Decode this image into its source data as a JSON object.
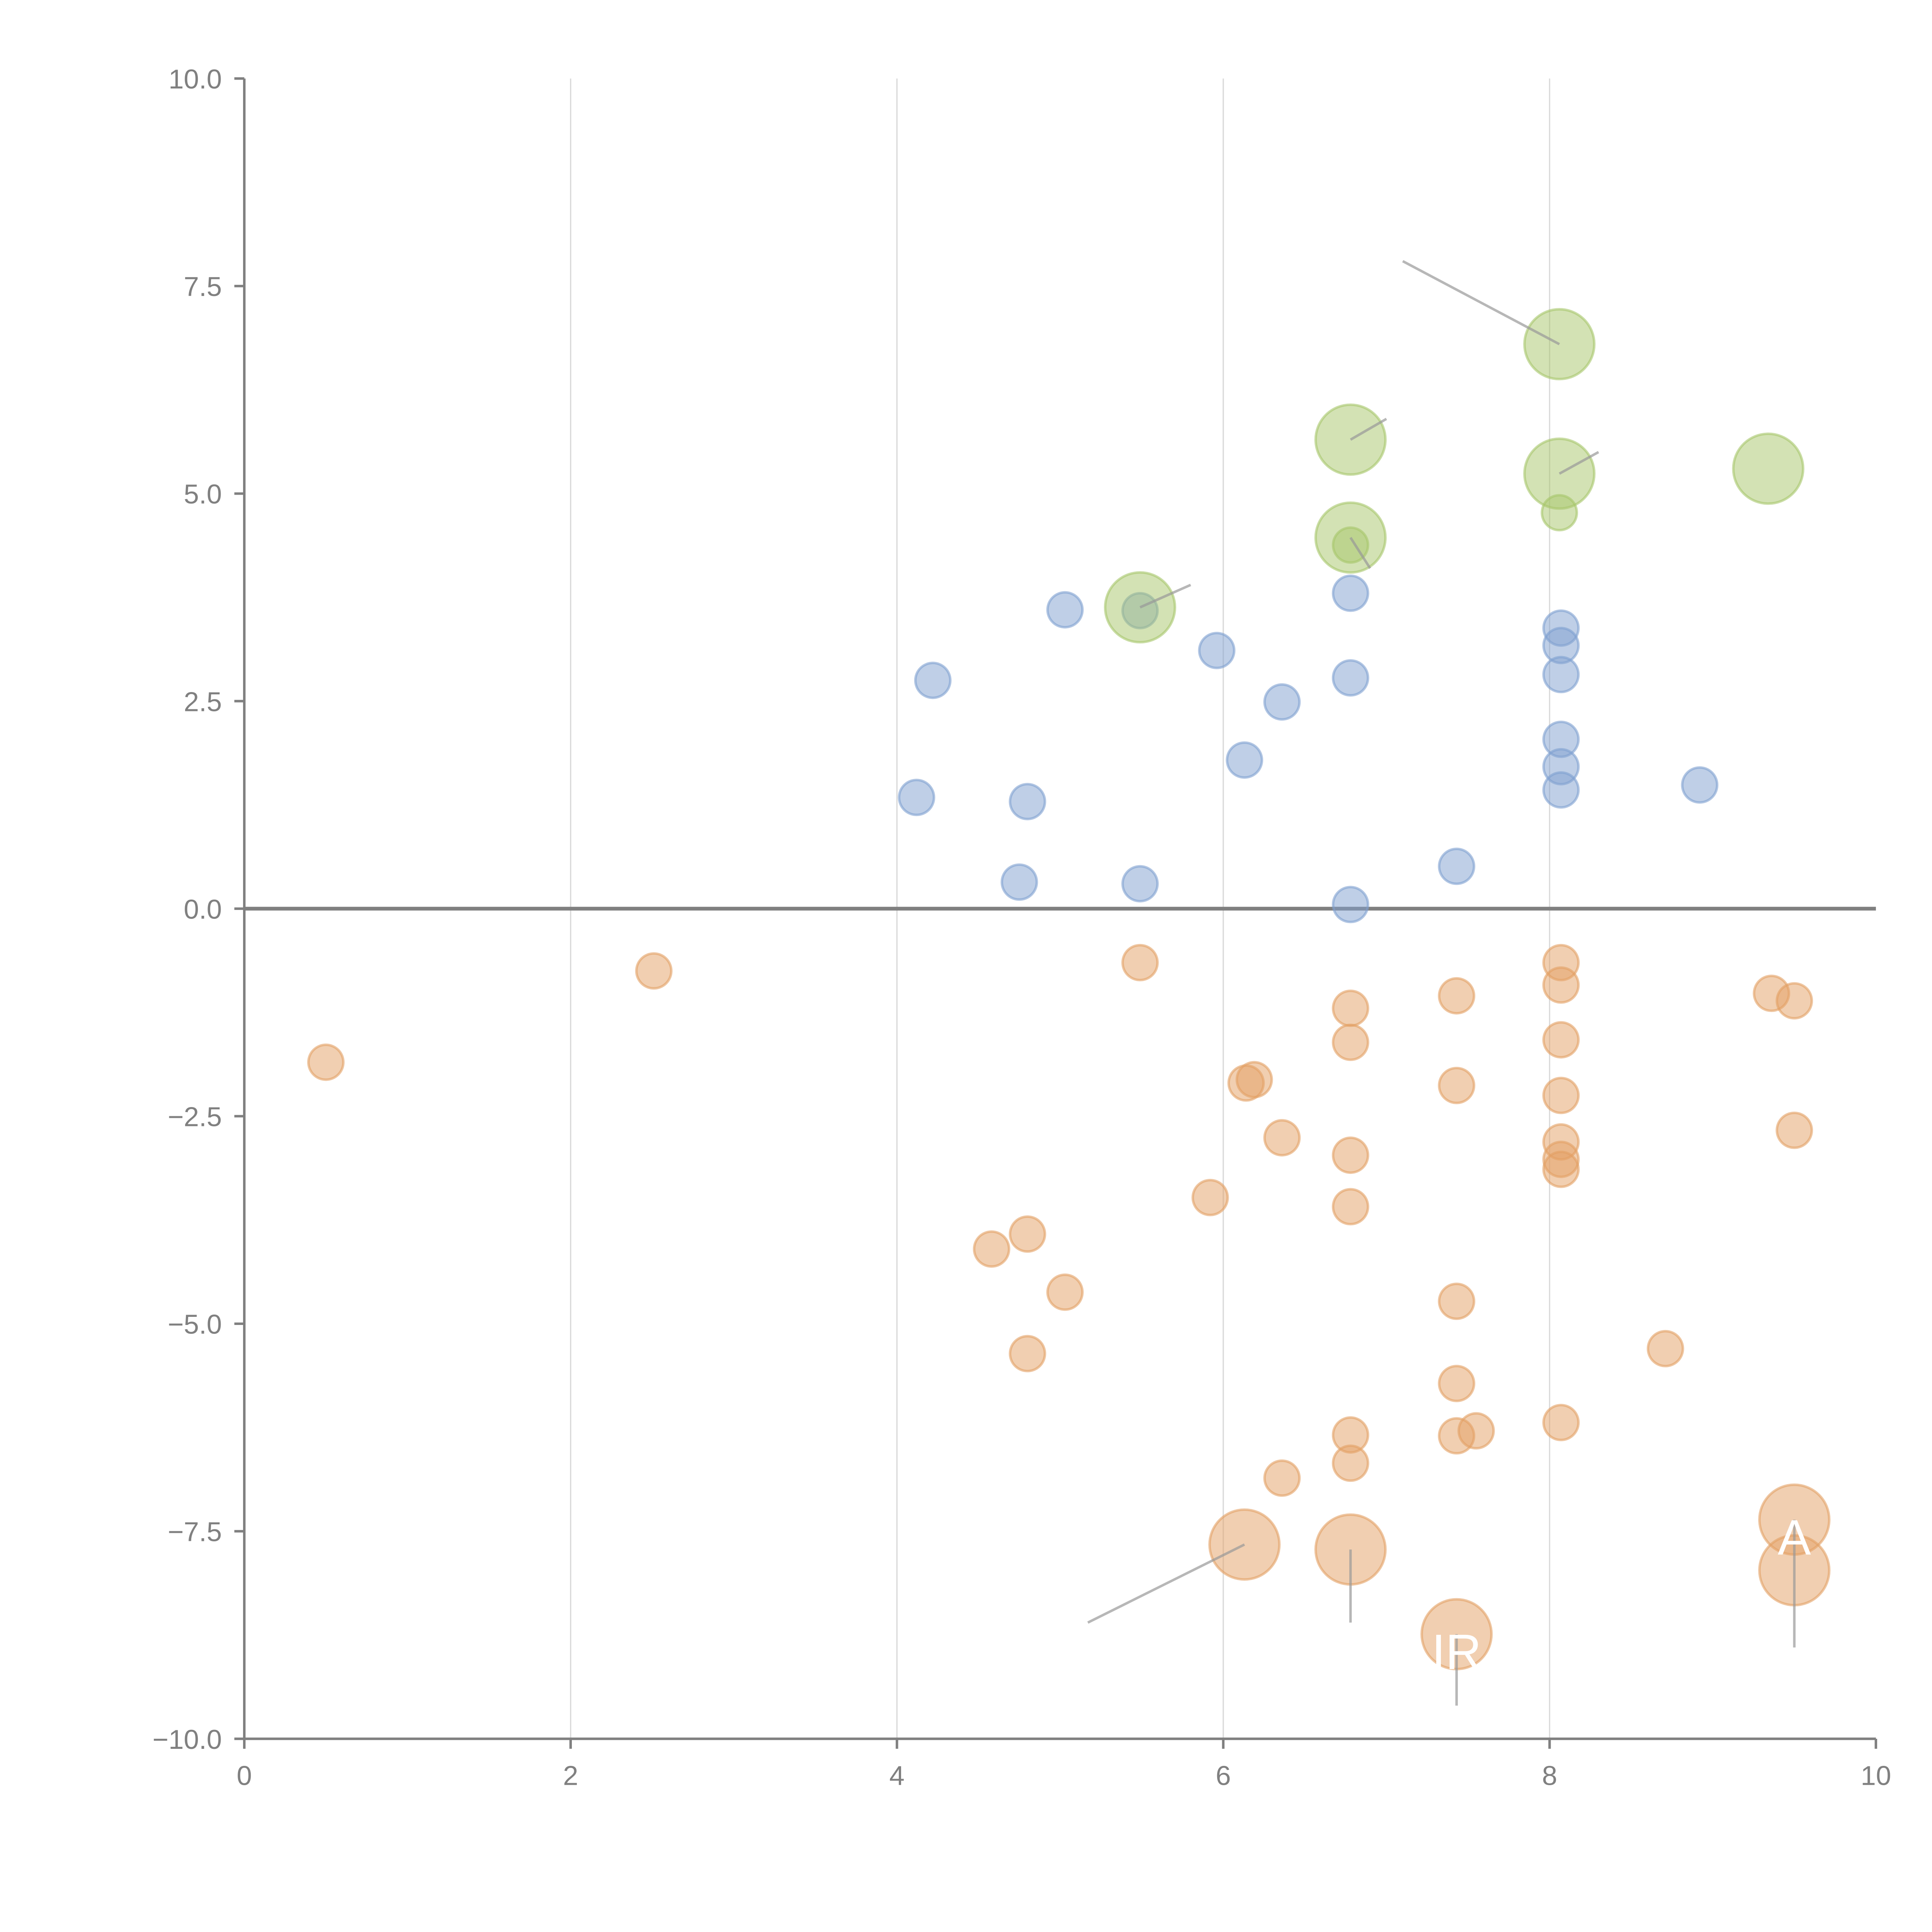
{
  "chart_data": {
    "type": "scatter",
    "title": "",
    "xlabel": "",
    "ylabel": "",
    "xlim": [
      0,
      10
    ],
    "ylim": [
      -10,
      10
    ],
    "x_ticks": [
      "0",
      "2",
      "4",
      "6",
      "8",
      "10"
    ],
    "y_ticks": [
      "10.0",
      "7.5",
      "5.0",
      "2.5",
      "0.0",
      "−2.5",
      "−5.0",
      "−7.5",
      "−10.0"
    ],
    "grid": "vertical",
    "legend": "none",
    "series": [
      {
        "name": "blue",
        "color": "#7fa0d0",
        "size": "small",
        "points": [
          [
            4.22,
            2.75
          ],
          [
            4.12,
            1.34
          ],
          [
            4.8,
            1.29
          ],
          [
            4.75,
            0.32
          ],
          [
            5.03,
            3.6
          ],
          [
            5.49,
            3.59
          ],
          [
            5.49,
            0.3
          ],
          [
            5.96,
            3.11
          ],
          [
            6.13,
            1.79
          ],
          [
            6.36,
            2.49
          ],
          [
            6.78,
            3.8
          ],
          [
            6.78,
            2.78
          ],
          [
            6.78,
            0.05
          ],
          [
            7.43,
            0.51
          ],
          [
            8.07,
            3.38
          ],
          [
            8.07,
            3.17
          ],
          [
            8.07,
            2.82
          ],
          [
            8.07,
            2.04
          ],
          [
            8.07,
            1.71
          ],
          [
            8.07,
            1.43
          ],
          [
            8.92,
            1.49
          ]
        ]
      },
      {
        "name": "green",
        "color": "#a7c66a",
        "points": [
          [
            5.49,
            3.63,
            "big"
          ],
          [
            6.78,
            5.65,
            "big"
          ],
          [
            6.78,
            4.47,
            "big"
          ],
          [
            6.78,
            4.38,
            "small"
          ],
          [
            8.06,
            6.8,
            "big"
          ],
          [
            8.06,
            5.24,
            "big"
          ],
          [
            8.06,
            4.77,
            "small"
          ],
          [
            9.34,
            5.3,
            "big"
          ]
        ]
      },
      {
        "name": "orange",
        "color": "#e3a064",
        "points": [
          [
            0.5,
            -1.85,
            "small"
          ],
          [
            2.51,
            -0.75,
            "small"
          ],
          [
            5.49,
            -0.65,
            "small"
          ],
          [
            6.78,
            -1.2,
            "small"
          ],
          [
            6.78,
            -1.61,
            "small"
          ],
          [
            7.43,
            -1.05,
            "small"
          ],
          [
            8.07,
            -0.65,
            "small"
          ],
          [
            8.07,
            -0.92,
            "small"
          ],
          [
            8.07,
            -1.58,
            "small"
          ],
          [
            9.36,
            -1.02,
            "small"
          ],
          [
            9.5,
            -1.11,
            "small"
          ],
          [
            6.14,
            -2.1,
            "small"
          ],
          [
            6.19,
            -2.06,
            "small"
          ],
          [
            7.43,
            -2.13,
            "small"
          ],
          [
            8.07,
            -2.25,
            "small"
          ],
          [
            6.36,
            -2.76,
            "small"
          ],
          [
            6.78,
            -2.97,
            "small"
          ],
          [
            8.07,
            -2.81,
            "small"
          ],
          [
            8.07,
            -3.02,
            "small"
          ],
          [
            8.07,
            -3.14,
            "small"
          ],
          [
            9.5,
            -2.67,
            "small"
          ],
          [
            5.92,
            -3.48,
            "small"
          ],
          [
            6.78,
            -3.59,
            "small"
          ],
          [
            4.8,
            -3.92,
            "small"
          ],
          [
            4.58,
            -4.1,
            "small"
          ],
          [
            5.03,
            -4.62,
            "small"
          ],
          [
            7.43,
            -4.73,
            "small"
          ],
          [
            4.8,
            -5.36,
            "small"
          ],
          [
            8.71,
            -5.3,
            "small"
          ],
          [
            7.43,
            -5.72,
            "small"
          ],
          [
            8.07,
            -6.19,
            "small"
          ],
          [
            6.78,
            -6.34,
            "small"
          ],
          [
            7.43,
            -6.35,
            "small"
          ],
          [
            7.55,
            -6.29,
            "small"
          ],
          [
            6.78,
            -6.68,
            "small"
          ],
          [
            6.36,
            -6.86,
            "small"
          ],
          [
            6.13,
            -7.66,
            "big"
          ],
          [
            6.78,
            -7.72,
            "big"
          ],
          [
            7.43,
            -8.74,
            "big"
          ],
          [
            9.5,
            -7.36,
            "big"
          ],
          [
            9.5,
            -7.97,
            "big"
          ]
        ]
      }
    ],
    "annotations": [
      {
        "text": "",
        "point": [
          8.06,
          6.8
        ],
        "label_at": [
          7.1,
          7.8
        ]
      },
      {
        "text": "",
        "point": [
          6.78,
          5.65
        ],
        "label_at": [
          7.0,
          5.9
        ]
      },
      {
        "text": "",
        "point": [
          8.06,
          5.24
        ],
        "label_at": [
          8.3,
          5.5
        ]
      },
      {
        "text": "",
        "point": [
          6.78,
          4.47
        ],
        "label_at": [
          6.9,
          4.1
        ]
      },
      {
        "text": "",
        "point": [
          5.49,
          3.63
        ],
        "label_at": [
          5.8,
          3.9
        ]
      },
      {
        "text": "",
        "point": [
          6.13,
          -7.66
        ],
        "label_at": [
          5.17,
          -8.6
        ]
      },
      {
        "text": "",
        "point": [
          6.78,
          -7.72
        ],
        "label_at": [
          6.78,
          -8.6
        ]
      },
      {
        "text": "IR",
        "point": [
          7.43,
          -8.74
        ],
        "label_at": [
          7.43,
          -9.6
        ]
      },
      {
        "text": "A",
        "point": [
          9.5,
          -7.36
        ],
        "label_at": [
          9.5,
          -8.9
        ]
      }
    ]
  }
}
